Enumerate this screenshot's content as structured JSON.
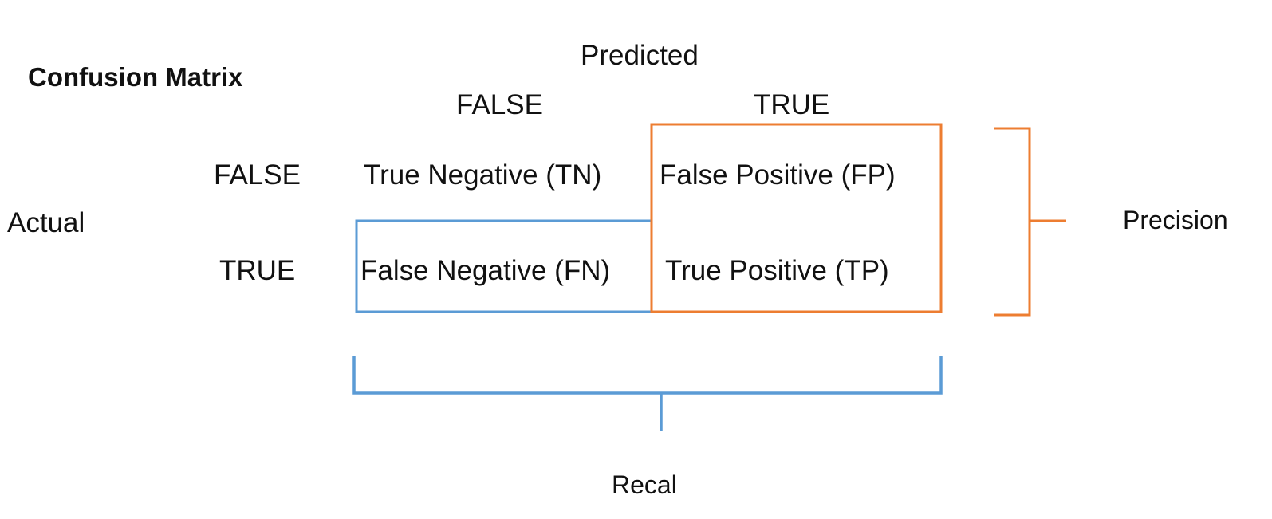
{
  "title": "Confusion Matrix",
  "predicted": {
    "label": "Predicted",
    "false_label": "FALSE",
    "true_label": "TRUE"
  },
  "actual": {
    "label": "Actual",
    "false_label": "FALSE",
    "true_label": "TRUE"
  },
  "cells": {
    "tn": "True Negative (TN)",
    "fp": "False Positive (FP)",
    "fn": "False Negative (FN)",
    "tp": "True Positive (TP)"
  },
  "precision_label": "Precision",
  "recall_label": "Recal",
  "colors": {
    "precision": "#ED7D31",
    "recall": "#5B9BD5",
    "text": "#111111"
  }
}
